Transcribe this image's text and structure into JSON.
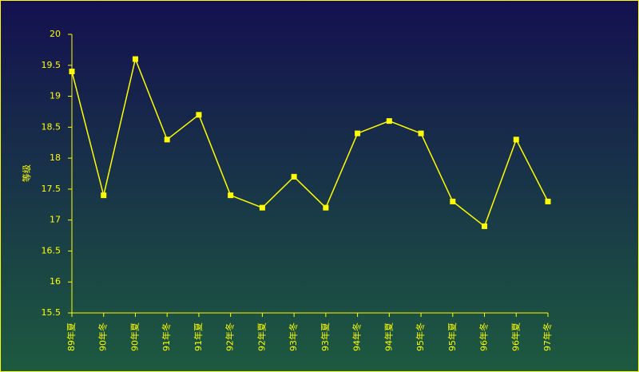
{
  "chart_data": {
    "type": "line",
    "y_label": "等级",
    "categories": [
      "89年夏",
      "90年冬",
      "90年夏",
      "91年冬",
      "91年夏",
      "92年冬",
      "92年夏",
      "93年冬",
      "93年夏",
      "94年冬",
      "94年夏",
      "95年冬",
      "95年夏",
      "96年冬",
      "96年夏",
      "97年冬"
    ],
    "values": [
      19.4,
      17.4,
      19.6,
      18.3,
      18.7,
      17.4,
      17.2,
      17.7,
      17.2,
      18.4,
      18.6,
      18.4,
      17.3,
      16.9,
      18.3,
      17.3
    ],
    "color": "#ffff00",
    "ylim": [
      15.5,
      20
    ],
    "yticks": [
      15.5,
      16,
      16.5,
      17,
      17.5,
      18,
      18.5,
      19,
      19.5,
      20
    ]
  }
}
